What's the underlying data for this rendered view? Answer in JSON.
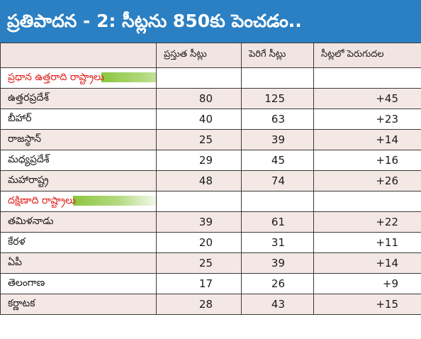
{
  "title": "ప్రతిపాదన - 2: సీట్లను 850కు పెంచడం..",
  "columns": [
    "",
    "ప్రస్తుత సీట్లు",
    "పెరిగే సీట్లు",
    "సీట్లలో పెరుగుదల"
  ],
  "sections": [
    {
      "label": "ప్రధాన ఉత్తరాది రాష్ట్రాలు",
      "rows": [
        {
          "state": "ఉత్తరప్రదేశ్",
          "current": "80",
          "increased": "125",
          "change": "+45"
        },
        {
          "state": "బీహార్",
          "current": "40",
          "increased": "63",
          "change": "+23"
        },
        {
          "state": "రాజస్థాన్",
          "current": "25",
          "increased": "39",
          "change": "+14"
        },
        {
          "state": "మధ్యప్రదేశ్",
          "current": "29",
          "increased": "45",
          "change": "+16"
        },
        {
          "state": "మహారాష్ట్ర",
          "current": "48",
          "increased": "74",
          "change": "+26"
        }
      ]
    },
    {
      "label": "దక్షిణాది రాష్ట్రాలు",
      "rows": [
        {
          "state": "తమిళనాడు",
          "current": "39",
          "increased": "61",
          "change": "+22"
        },
        {
          "state": "కేరళ",
          "current": "20",
          "increased": "31",
          "change": "+11"
        },
        {
          "state": "ఏపీ",
          "current": "25",
          "increased": "39",
          "change": "+14"
        },
        {
          "state": "తెలంగాణ",
          "current": "17",
          "increased": "26",
          "change": "+9"
        },
        {
          "state": "కర్ణాటక",
          "current": "28",
          "increased": "43",
          "change": "+15"
        }
      ]
    }
  ],
  "colors": {
    "title_bg": "#2b7fc3",
    "section_label": "#e0201b",
    "row_tint": "#f4e8e5",
    "bar": "#8cc63f"
  }
}
